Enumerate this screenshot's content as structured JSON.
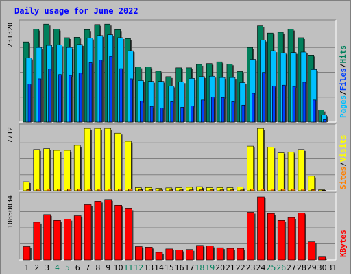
{
  "title": "Daily usage for June 2022",
  "colors": {
    "hits": "#00805c",
    "files": "#00c0ff",
    "pages": "#0040ff",
    "visits": "#ffff00",
    "sites": "#ff8000",
    "kbytes": "#ff0000",
    "title": "#0000ff",
    "weekend_label": "#00805c",
    "label": "#000000",
    "slash": "#000000"
  },
  "labels": {
    "hits": "Hits",
    "files": "Files",
    "pages": "Pages",
    "visits": "Visits",
    "sites": "Sites",
    "kbytes": "KBytes",
    "slash": "/"
  },
  "chart_data": [
    {
      "type": "bar",
      "name": "usage-panel",
      "ymax_label": "231320",
      "ymax": 231320,
      "categories": [
        "1",
        "2",
        "3",
        "4",
        "5",
        "6",
        "7",
        "8",
        "9",
        "10",
        "11",
        "12",
        "13",
        "14",
        "15",
        "16",
        "17",
        "18",
        "19",
        "20",
        "21",
        "22",
        "23",
        "24",
        "25",
        "26",
        "27",
        "28",
        "29",
        "30",
        "31"
      ],
      "weekend_days": [
        "4",
        "5",
        "11",
        "12",
        "18",
        "19",
        "25",
        "26"
      ],
      "series": [
        {
          "name": "Hits",
          "values": [
            189000,
            219000,
            231000,
            219000,
            199000,
            200000,
            218000,
            230000,
            231000,
            218000,
            197000,
            130000,
            130000,
            120000,
            107000,
            128000,
            128000,
            136000,
            138000,
            142000,
            137000,
            119000,
            176000,
            227000,
            210000,
            212000,
            219000,
            199000,
            158000,
            28000,
            0
          ]
        },
        {
          "name": "Files",
          "values": [
            151000,
            176000,
            181000,
            182000,
            176000,
            183000,
            198000,
            204000,
            206000,
            199000,
            168000,
            98000,
            96000,
            96000,
            85000,
            95000,
            103000,
            107000,
            108000,
            105000,
            105000,
            93000,
            148000,
            193000,
            168000,
            163000,
            164000,
            165000,
            124000,
            17000,
            0
          ]
        },
        {
          "name": "Pages",
          "values": [
            90000,
            102000,
            125000,
            112000,
            110000,
            116000,
            140000,
            146000,
            155000,
            126000,
            102000,
            49000,
            37000,
            33000,
            48000,
            35000,
            38000,
            52000,
            59000,
            58000,
            48000,
            40000,
            68000,
            117000,
            85000,
            87000,
            84000,
            94000,
            52000,
            6000,
            0
          ]
        }
      ]
    },
    {
      "type": "bar",
      "name": "visits-panel",
      "ymax_label": "7712",
      "ymax": 7712,
      "categories": [
        "1",
        "2",
        "3",
        "4",
        "5",
        "6",
        "7",
        "8",
        "9",
        "10",
        "11",
        "12",
        "13",
        "14",
        "15",
        "16",
        "17",
        "18",
        "19",
        "20",
        "21",
        "22",
        "23",
        "24",
        "25",
        "26",
        "27",
        "28",
        "29",
        "30",
        "31"
      ],
      "series": [
        {
          "name": "Visits",
          "values": [
            1100,
            5100,
            5200,
            5000,
            5000,
            5600,
            7700,
            7700,
            7700,
            7100,
            6100,
            380,
            400,
            300,
            350,
            380,
            430,
            500,
            380,
            400,
            380,
            450,
            5500,
            7700,
            5400,
            4700,
            4800,
            5100,
            1800,
            120,
            0
          ]
        },
        {
          "name": "Sites",
          "values": [
            150,
            200,
            200,
            200,
            190,
            200,
            210,
            220,
            220,
            210,
            190,
            120,
            120,
            110,
            100,
            110,
            110,
            120,
            120,
            110,
            110,
            100,
            200,
            220,
            200,
            190,
            190,
            200,
            150,
            60,
            0
          ]
        }
      ]
    },
    {
      "type": "bar",
      "name": "kbytes-panel",
      "ymax_label": "10850034",
      "ymax": 10850034,
      "categories": [
        "1",
        "2",
        "3",
        "4",
        "5",
        "6",
        "7",
        "8",
        "9",
        "10",
        "11",
        "12",
        "13",
        "14",
        "15",
        "16",
        "17",
        "18",
        "19",
        "20",
        "21",
        "22",
        "23",
        "24",
        "25",
        "26",
        "27",
        "28",
        "29",
        "30",
        "31"
      ],
      "series": [
        {
          "name": "KBytes",
          "values": [
            2300000,
            6500000,
            7800000,
            6800000,
            7000000,
            7600000,
            9500000,
            10100000,
            10400000,
            9400000,
            8800000,
            2300000,
            2200000,
            1300000,
            1900000,
            1700000,
            1800000,
            2500000,
            2400000,
            2100000,
            2000000,
            2000000,
            8200000,
            10850000,
            8000000,
            6800000,
            7300000,
            8100000,
            3100000,
            500000,
            0
          ]
        }
      ]
    }
  ]
}
